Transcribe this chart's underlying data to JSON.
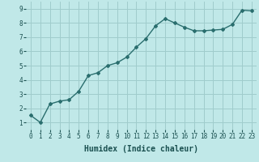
{
  "x": [
    0,
    1,
    2,
    3,
    4,
    5,
    6,
    7,
    8,
    9,
    10,
    11,
    12,
    13,
    14,
    15,
    16,
    17,
    18,
    19,
    20,
    21,
    22,
    23
  ],
  "y": [
    1.5,
    1.0,
    2.3,
    2.5,
    2.6,
    3.2,
    4.3,
    4.5,
    5.0,
    5.2,
    5.6,
    6.3,
    6.9,
    7.8,
    8.3,
    8.0,
    7.7,
    7.45,
    7.45,
    7.5,
    7.55,
    7.9,
    8.9,
    8.85
  ],
  "line_color": "#2a6e6e",
  "marker": "D",
  "marker_size": 2.0,
  "bg_color": "#c0e8e8",
  "grid_color": "#a0cccc",
  "xlabel": "Humidex (Indice chaleur)",
  "xlabel_color": "#1a5050",
  "tick_color": "#1a5050",
  "xlim": [
    -0.5,
    23.5
  ],
  "ylim": [
    0.5,
    9.5
  ],
  "yticks": [
    1,
    2,
    3,
    4,
    5,
    6,
    7,
    8,
    9
  ],
  "xticks": [
    0,
    1,
    2,
    3,
    4,
    5,
    6,
    7,
    8,
    9,
    10,
    11,
    12,
    13,
    14,
    15,
    16,
    17,
    18,
    19,
    20,
    21,
    22,
    23
  ],
  "xtick_labels": [
    "0",
    "1",
    "2",
    "3",
    "4",
    "5",
    "6",
    "7",
    "8",
    "9",
    "10",
    "11",
    "12",
    "13",
    "14",
    "15",
    "16",
    "17",
    "18",
    "19",
    "20",
    "21",
    "22",
    "23"
  ],
  "line_width": 1.0,
  "font_size": 5.5,
  "xlabel_fontsize": 7.0,
  "xlabel_fontweight": "bold"
}
